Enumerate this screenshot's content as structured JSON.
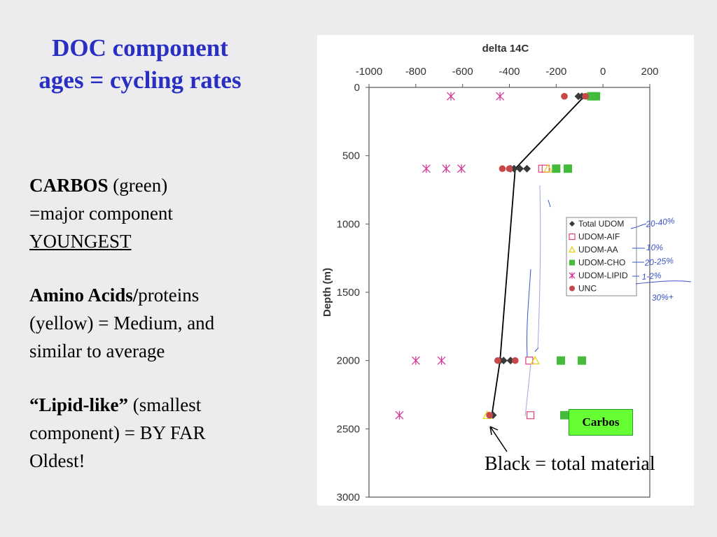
{
  "slide": {
    "title": "DOC component ages = cycling rates",
    "carbos_label": "CARBOS",
    "carbos_color_text": " (green)",
    "carbos_line2": "=major component",
    "carbos_line3": "YOUNGEST",
    "amino_label": "Amino Acids/",
    "amino_rest": "proteins",
    "amino_line2": "(yellow) = Medium, and",
    "amino_line3": "similar to average",
    "lipid_label": "“Lipid-like”",
    "lipid_rest": " (smallest",
    "lipid_line2": "component) = BY FAR",
    "lipid_line3": "Oldest!",
    "caption": "Black = total material",
    "carbos_callout": "Carbos"
  },
  "colors": {
    "title": "#2a2fc4",
    "total_udom": "#3a3a3a",
    "udom_aif": "#e0407a",
    "udom_aa": "#e8d21a",
    "udom_cho": "#44bb3a",
    "udom_lipid": "#d0389a",
    "unc": "#c8484a",
    "carbos_box": "#66ff33",
    "handwriting": "#3a55c8"
  },
  "annotations": [
    "20-40%",
    "10%",
    "20-25%",
    "1-2%",
    "30%+"
  ],
  "chart_data": {
    "type": "scatter",
    "title": "delta 14C",
    "xlabel": "delta 14C",
    "ylabel": "Depth (m)",
    "x_axis_position": "top",
    "xlim": [
      -1000,
      200
    ],
    "ylim": [
      0,
      3000
    ],
    "y_inverted": true,
    "xticks": [
      -1000,
      -800,
      -600,
      -400,
      -200,
      0,
      200
    ],
    "yticks": [
      0,
      500,
      1000,
      1500,
      2000,
      2500,
      3000
    ],
    "legend_position": "right-middle",
    "grid": false,
    "series": [
      {
        "name": "Total UDOM",
        "marker": "diamond",
        "color_key": "total_udom",
        "points": [
          [
            -105,
            65
          ],
          [
            -90,
            65
          ],
          [
            -380,
            595
          ],
          [
            -395,
            595
          ],
          [
            -355,
            595
          ],
          [
            -325,
            595
          ],
          [
            -440,
            2000
          ],
          [
            -425,
            2000
          ],
          [
            -395,
            2000
          ],
          [
            -470,
            2400
          ]
        ]
      },
      {
        "name": "UDOM-AIF",
        "marker": "open-square",
        "color_key": "udom_aif",
        "points": [
          [
            -260,
            595
          ],
          [
            -245,
            595
          ],
          [
            -315,
            2000
          ],
          [
            -310,
            2400
          ]
        ]
      },
      {
        "name": "UDOM-AA",
        "marker": "open-triangle",
        "color_key": "udom_aa",
        "points": [
          [
            -235,
            595
          ],
          [
            -290,
            2000
          ],
          [
            -495,
            2400
          ]
        ]
      },
      {
        "name": "UDOM-CHO",
        "marker": "square",
        "color_key": "udom_cho",
        "points": [
          [
            -50,
            65
          ],
          [
            -30,
            65
          ],
          [
            -200,
            595
          ],
          [
            -150,
            595
          ],
          [
            -180,
            2000
          ],
          [
            -90,
            2000
          ],
          [
            -165,
            2400
          ]
        ]
      },
      {
        "name": "UDOM-LIPID",
        "marker": "asterisk",
        "color_key": "udom_lipid",
        "points": [
          [
            -650,
            65
          ],
          [
            -440,
            65
          ],
          [
            -755,
            595
          ],
          [
            -670,
            595
          ],
          [
            -605,
            595
          ],
          [
            -800,
            2000
          ],
          [
            -690,
            2000
          ],
          [
            -870,
            2400
          ]
        ]
      },
      {
        "name": "UNC",
        "marker": "circle",
        "color_key": "unc",
        "points": [
          [
            -165,
            65
          ],
          [
            -75,
            65
          ],
          [
            -430,
            595
          ],
          [
            -400,
            595
          ],
          [
            -450,
            2000
          ],
          [
            -375,
            2000
          ],
          [
            -485,
            2400
          ]
        ]
      }
    ],
    "total_line": [
      [
        -80,
        65
      ],
      [
        -375,
        595
      ],
      [
        -440,
        2000
      ],
      [
        -475,
        2400
      ]
    ]
  }
}
